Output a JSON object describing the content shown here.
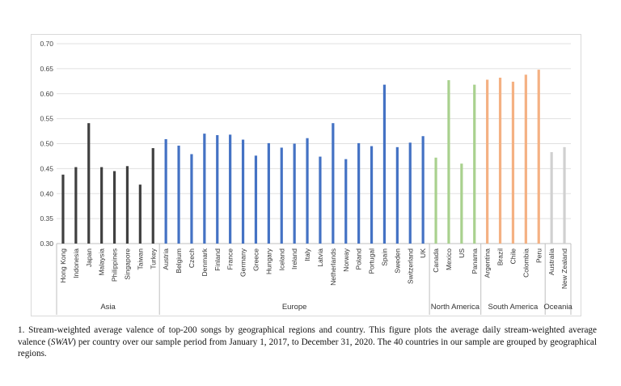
{
  "chart_data": {
    "type": "bar",
    "title": "",
    "xlabel": "",
    "ylabel": "",
    "ylim": [
      0.3,
      0.7
    ],
    "yticks": [
      "0.30",
      "0.35",
      "0.40",
      "0.45",
      "0.50",
      "0.55",
      "0.60",
      "0.65",
      "0.70"
    ],
    "grid": true,
    "groups": [
      {
        "name": "Asia",
        "color": "#404040",
        "categories": [
          "Hong Kong",
          "Indonesia",
          "Japan",
          "Malaysia",
          "Philippines",
          "Singapore",
          "Taiwan",
          "Turkey"
        ],
        "values": [
          0.438,
          0.453,
          0.541,
          0.453,
          0.445,
          0.455,
          0.418,
          0.491
        ]
      },
      {
        "name": "Europe",
        "color": "#4472c4",
        "categories": [
          "Austria",
          "Belgium",
          "Czech",
          "Denmark",
          "Finland",
          "France",
          "Germany",
          "Greece",
          "Hungary",
          "Iceland",
          "Ireland",
          "Italy",
          "Latvia",
          "Netherlands",
          "Norway",
          "Poland",
          "Portugal",
          "Spain",
          "Sweden",
          "Switzerland",
          "UK"
        ],
        "values": [
          0.509,
          0.496,
          0.479,
          0.52,
          0.517,
          0.518,
          0.508,
          0.476,
          0.501,
          0.492,
          0.5,
          0.511,
          0.474,
          0.541,
          0.469,
          0.501,
          0.495,
          0.618,
          0.493,
          0.502,
          0.515
        ]
      },
      {
        "name": "North America",
        "color": "#a9d18e",
        "categories": [
          "Canada",
          "Mexico",
          "US",
          "Panama"
        ],
        "values": [
          0.472,
          0.627,
          0.46,
          0.618
        ]
      },
      {
        "name": "South America",
        "color": "#f4b183",
        "categories": [
          "Argentina",
          "Brazil",
          "Chile",
          "Colombia",
          "Peru"
        ],
        "values": [
          0.628,
          0.632,
          0.624,
          0.638,
          0.648
        ]
      },
      {
        "name": "Oceania",
        "color": "#d0d0d0",
        "categories": [
          "Australia",
          "New Zealand"
        ],
        "values": [
          0.483,
          0.493
        ]
      }
    ]
  },
  "caption": {
    "part1": "1. Stream-weighted average valence of top-200 songs by geographical regions and country. This figure plots the average daily stream-weighted average valence (",
    "italic": "SWAV",
    "part2": ") per country over our sample period from January 1, 2017, to December 31, 2020. The 40 countries in our sample are grouped by geographical regions."
  }
}
